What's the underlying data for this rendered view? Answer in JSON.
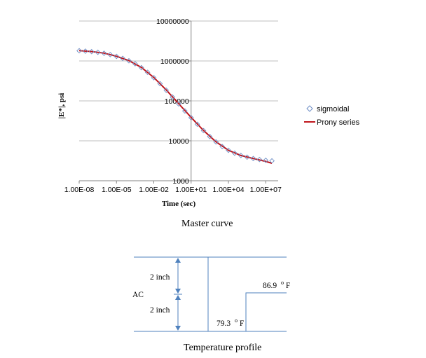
{
  "chart_data": {
    "type": "scatter",
    "title": "",
    "xlabel": "Time (sec)",
    "ylabel": "|E*|, psi",
    "xscale": "log",
    "yscale": "log",
    "xlim": [
      1e-08,
      100000000.0
    ],
    "ylim": [
      1000,
      10000000
    ],
    "x_tick_labels": [
      "1.00E-08",
      "1.00E-05",
      "1.00E-02",
      "1.00E+01",
      "1.00E+04",
      "1.00E+07"
    ],
    "y_tick_labels": [
      "1000",
      "10000",
      "100000",
      "1000000",
      "10000000"
    ],
    "grid": "horizontal",
    "legend_position": "right",
    "series": [
      {
        "name": "sigmoidal",
        "style": "marker",
        "marker": "diamond",
        "color": "#6f8fc6",
        "x": [
          1e-08,
          3.16e-08,
          1e-07,
          3.16e-07,
          1e-06,
          3.16e-06,
          1e-05,
          3.16e-05,
          0.0001,
          0.000316,
          0.001,
          0.00316,
          0.01,
          0.0316,
          0.1,
          0.316,
          1,
          3.16,
          10,
          31.6,
          100,
          316,
          1000,
          3160,
          10000,
          31600,
          100000,
          316000,
          1000000,
          3160000,
          10000000,
          31600000
        ],
        "y": [
          1800000,
          1760000,
          1710000,
          1650000,
          1560000,
          1440000,
          1300000,
          1160000,
          1010000,
          850000,
          680000,
          520000,
          380000,
          270000,
          185000,
          125000,
          84000,
          56000,
          38000,
          26000,
          18000,
          12800,
          9400,
          7200,
          5800,
          4900,
          4300,
          3900,
          3600,
          3400,
          3250,
          3150
        ]
      },
      {
        "name": "Prony series",
        "style": "line",
        "color": "#c0161c",
        "x": [
          1e-08,
          1e-07,
          1e-06,
          1e-05,
          0.0001,
          0.001,
          0.01,
          0.1,
          1,
          10,
          100,
          1000,
          10000,
          100000,
          1000000,
          10000000,
          31600000
        ],
        "y": [
          1820000,
          1720000,
          1570000,
          1310000,
          1020000,
          690000,
          385000,
          188000,
          85000,
          38500,
          18100,
          9400,
          5800,
          4300,
          3600,
          3050,
          2750
        ]
      }
    ]
  },
  "captions": {
    "master_curve": "Master curve",
    "temperature_profile": "Temperature profile"
  },
  "profile": {
    "layer_label": "AC",
    "upper_thickness": "2 inch",
    "lower_thickness": "2 inch",
    "temp_low_value": "79.3",
    "temp_high_value": "86.9",
    "temp_unit_degree": "o",
    "temp_unit_letter": "F"
  },
  "colors": {
    "plot_grid": "#bfbfbf",
    "axis_line": "#868686",
    "profile_line": "#4f81bd"
  }
}
